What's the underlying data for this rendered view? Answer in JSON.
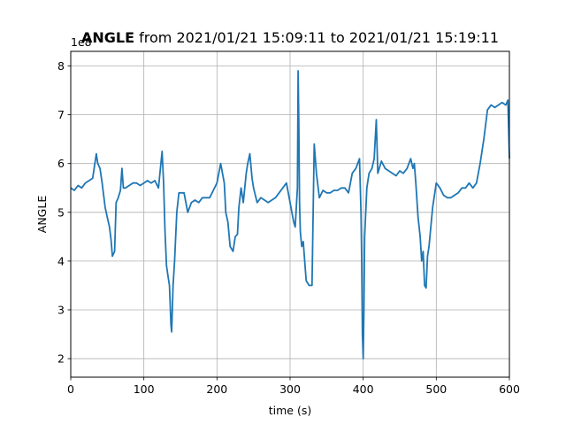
{
  "chart_data": {
    "type": "line",
    "title_bold": "ANGLE",
    "title_rest": " from 2021/01/21 15:09:11 to 2021/01/21 15:19:11",
    "xlabel": "time (s)",
    "ylabel": "ANGLE",
    "offset_text": "1e8",
    "xlim": [
      0,
      600
    ],
    "ylim": [
      1.62,
      8.3
    ],
    "xticks": [
      0,
      100,
      200,
      300,
      400,
      500,
      600
    ],
    "yticks": [
      2,
      3,
      4,
      5,
      6,
      7,
      8
    ],
    "grid": true,
    "color": "#1f77b4",
    "series": [
      {
        "x": [
          0,
          5,
          10,
          15,
          20,
          25,
          30,
          35,
          37,
          40,
          43,
          47,
          50,
          53,
          55,
          57,
          60,
          62,
          65,
          68,
          70,
          72,
          75,
          80,
          85,
          90,
          95,
          100,
          105,
          110,
          115,
          120,
          125,
          127,
          129,
          131,
          133,
          135,
          137,
          138,
          140,
          142,
          145,
          148,
          150,
          155,
          160,
          165,
          170,
          175,
          180,
          185,
          190,
          195,
          200,
          205,
          210,
          212,
          215,
          218,
          222,
          225,
          228,
          230,
          233,
          236,
          240,
          242,
          245,
          248,
          250,
          255,
          260,
          265,
          270,
          275,
          280,
          285,
          290,
          295,
          300,
          305,
          307,
          310,
          311,
          312,
          313,
          314,
          316,
          318,
          322,
          326,
          330,
          333,
          336,
          340,
          345,
          350,
          355,
          360,
          365,
          370,
          375,
          380,
          385,
          390,
          395,
          397,
          398,
          399,
          400,
          401,
          402,
          405,
          408,
          412,
          415,
          418,
          420,
          425,
          430,
          435,
          440,
          445,
          450,
          455,
          460,
          465,
          468,
          470,
          472,
          475,
          478,
          480,
          482,
          484,
          486,
          488,
          490,
          495,
          500,
          505,
          510,
          515,
          520,
          525,
          530,
          535,
          540,
          545,
          550,
          555,
          560,
          563,
          565,
          570,
          575,
          580,
          585,
          590,
          595,
          598,
          600
        ],
        "y": [
          5.5,
          5.45,
          5.55,
          5.5,
          5.6,
          5.65,
          5.7,
          6.2,
          6.0,
          5.9,
          5.6,
          5.1,
          4.9,
          4.7,
          4.45,
          4.1,
          4.2,
          5.2,
          5.3,
          5.45,
          5.9,
          5.5,
          5.5,
          5.55,
          5.6,
          5.6,
          5.55,
          5.6,
          5.65,
          5.6,
          5.65,
          5.5,
          6.25,
          5.6,
          4.6,
          3.9,
          3.7,
          3.5,
          2.7,
          2.55,
          3.5,
          4.0,
          5.0,
          5.4,
          5.4,
          5.4,
          5.0,
          5.2,
          5.25,
          5.2,
          5.3,
          5.3,
          5.3,
          5.45,
          5.6,
          6.0,
          5.6,
          5.0,
          4.8,
          4.3,
          4.2,
          4.5,
          4.55,
          5.1,
          5.5,
          5.2,
          5.8,
          6.0,
          6.2,
          5.7,
          5.5,
          5.2,
          5.3,
          5.25,
          5.2,
          5.25,
          5.3,
          5.4,
          5.5,
          5.6,
          5.2,
          4.8,
          4.7,
          5.5,
          7.9,
          6.8,
          5.2,
          4.6,
          4.3,
          4.4,
          3.6,
          3.5,
          3.5,
          6.4,
          5.8,
          5.3,
          5.45,
          5.4,
          5.4,
          5.45,
          5.45,
          5.5,
          5.5,
          5.4,
          5.8,
          5.9,
          6.1,
          5.0,
          4.0,
          2.5,
          2.0,
          3.0,
          4.5,
          5.5,
          5.8,
          5.9,
          6.1,
          6.9,
          5.8,
          6.05,
          5.9,
          5.85,
          5.8,
          5.75,
          5.85,
          5.8,
          5.9,
          6.1,
          5.9,
          6.0,
          5.6,
          4.9,
          4.5,
          4.0,
          4.2,
          3.5,
          3.45,
          4.1,
          4.3,
          5.1,
          5.6,
          5.5,
          5.35,
          5.3,
          5.3,
          5.35,
          5.4,
          5.5,
          5.5,
          5.6,
          5.5,
          5.6,
          6.0,
          6.3,
          6.5,
          7.1,
          7.2,
          7.15,
          7.2,
          7.25,
          7.2,
          7.3,
          6.1
        ]
      }
    ]
  }
}
